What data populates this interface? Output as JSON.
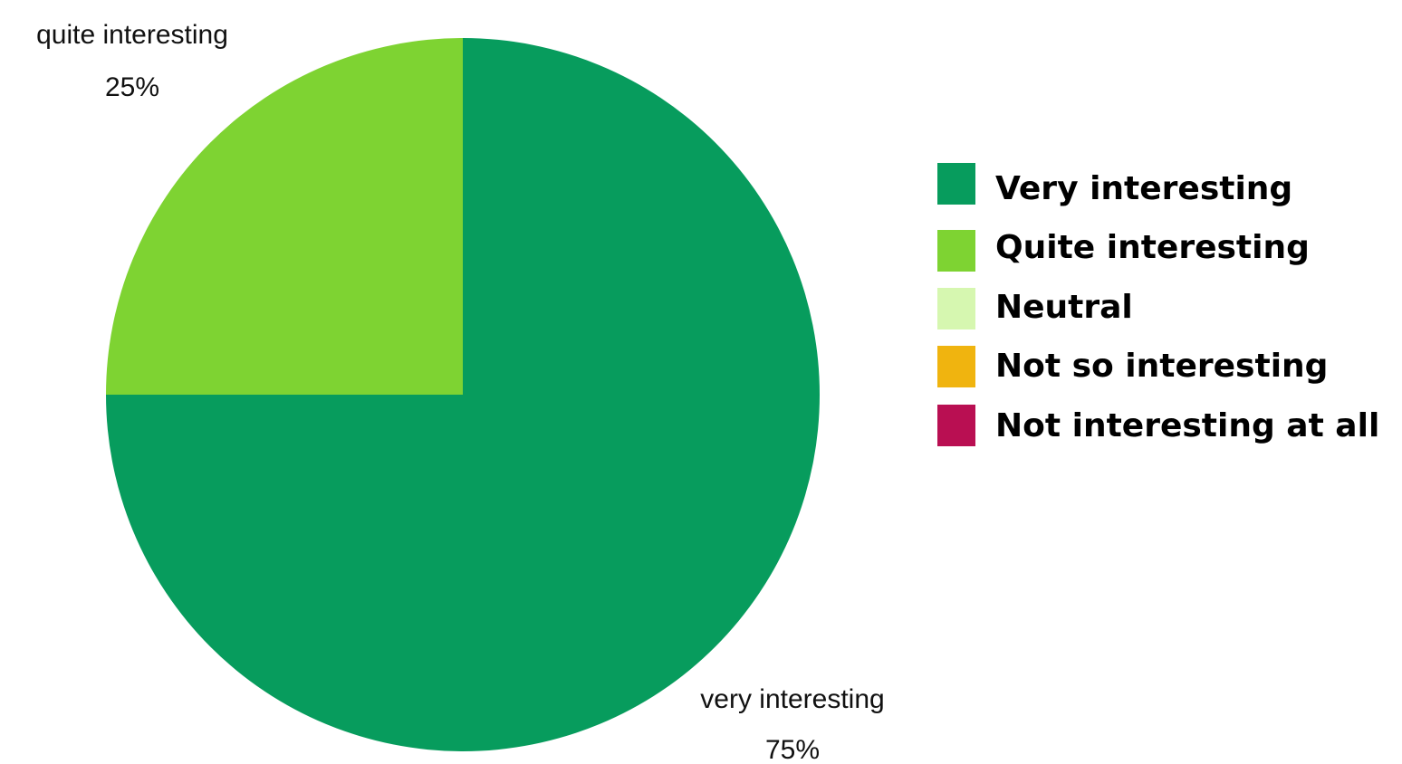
{
  "chart_data": {
    "type": "pie",
    "start_angle": "12 o'clock",
    "direction": "clockwise",
    "slices": [
      {
        "label": "very interesting",
        "value": 75,
        "value_label": "75%",
        "color": "#079c5d"
      },
      {
        "label": "quite interesting",
        "value": 25,
        "value_label": "25%",
        "color": "#7ed332"
      }
    ],
    "legend": {
      "placement": "right",
      "entries": [
        {
          "label": "Very interesting",
          "color": "#079c5d"
        },
        {
          "label": "Quite interesting",
          "color": "#7ed332"
        },
        {
          "label": "Neutral",
          "color": "#d6f7b0"
        },
        {
          "label": "Not so interesting",
          "color": "#f0b40f"
        },
        {
          "label": "Not interesting at all",
          "color": "#b90f52"
        }
      ]
    }
  }
}
